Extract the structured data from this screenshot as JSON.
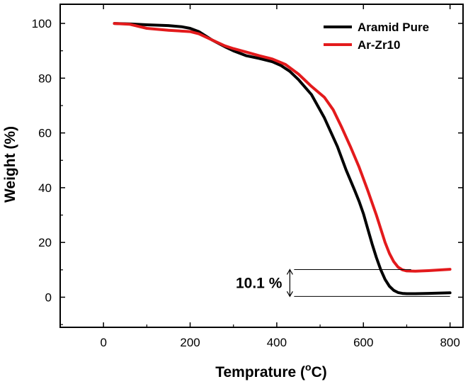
{
  "chart_data": {
    "type": "line",
    "title": "",
    "xlabel": "Temprature (",
    "xlabel_sup": "o",
    "xlabel_unit": "C)",
    "ylabel": "Weight (%)",
    "xlim": [
      -100,
      830
    ],
    "ylim": [
      -11,
      107
    ],
    "x_ticks": [
      0,
      200,
      400,
      600,
      800
    ],
    "y_ticks": [
      0,
      20,
      40,
      60,
      80,
      100
    ],
    "legend_position": "top-right",
    "series": [
      {
        "name": "Aramid Pure",
        "color": "#000000",
        "x": [
          25,
          60,
          100,
          150,
          180,
          200,
          220,
          250,
          280,
          300,
          330,
          360,
          390,
          410,
          430,
          450,
          480,
          510,
          540,
          560,
          580,
          590,
          600,
          610,
          620,
          630,
          640,
          650,
          660,
          670,
          680,
          690,
          700,
          720,
          750,
          800
        ],
        "y": [
          100,
          99.8,
          99.5,
          99.2,
          98.8,
          98.2,
          97,
          94,
          91.5,
          90,
          88.2,
          87.2,
          86,
          84.6,
          82.5,
          79.5,
          74,
          65.5,
          55,
          46.5,
          39,
          35,
          30.5,
          25,
          19.5,
          14.5,
          10,
          6.5,
          4,
          2.5,
          1.7,
          1.4,
          1.3,
          1.3,
          1.4,
          1.6
        ]
      },
      {
        "name": "Ar-Zr10",
        "color": "#e31a1c",
        "x": [
          25,
          60,
          100,
          150,
          200,
          220,
          250,
          280,
          300,
          330,
          360,
          390,
          420,
          450,
          480,
          510,
          530,
          550,
          570,
          590,
          610,
          630,
          650,
          660,
          670,
          680,
          690,
          700,
          720,
          750,
          800
        ],
        "y": [
          100,
          99.7,
          98.2,
          97.5,
          97,
          96.2,
          94,
          91.8,
          90.8,
          89.5,
          88.2,
          87,
          85,
          81.5,
          77,
          73,
          68.5,
          62,
          55,
          47.5,
          39,
          30,
          20,
          16,
          13,
          11,
          10,
          9.6,
          9.5,
          9.7,
          10.2
        ]
      }
    ],
    "annotation": {
      "text": "10.1 %",
      "x_start": 440,
      "x_end": 800,
      "y_upper": 10.1,
      "y_lower": 0.3
    }
  }
}
